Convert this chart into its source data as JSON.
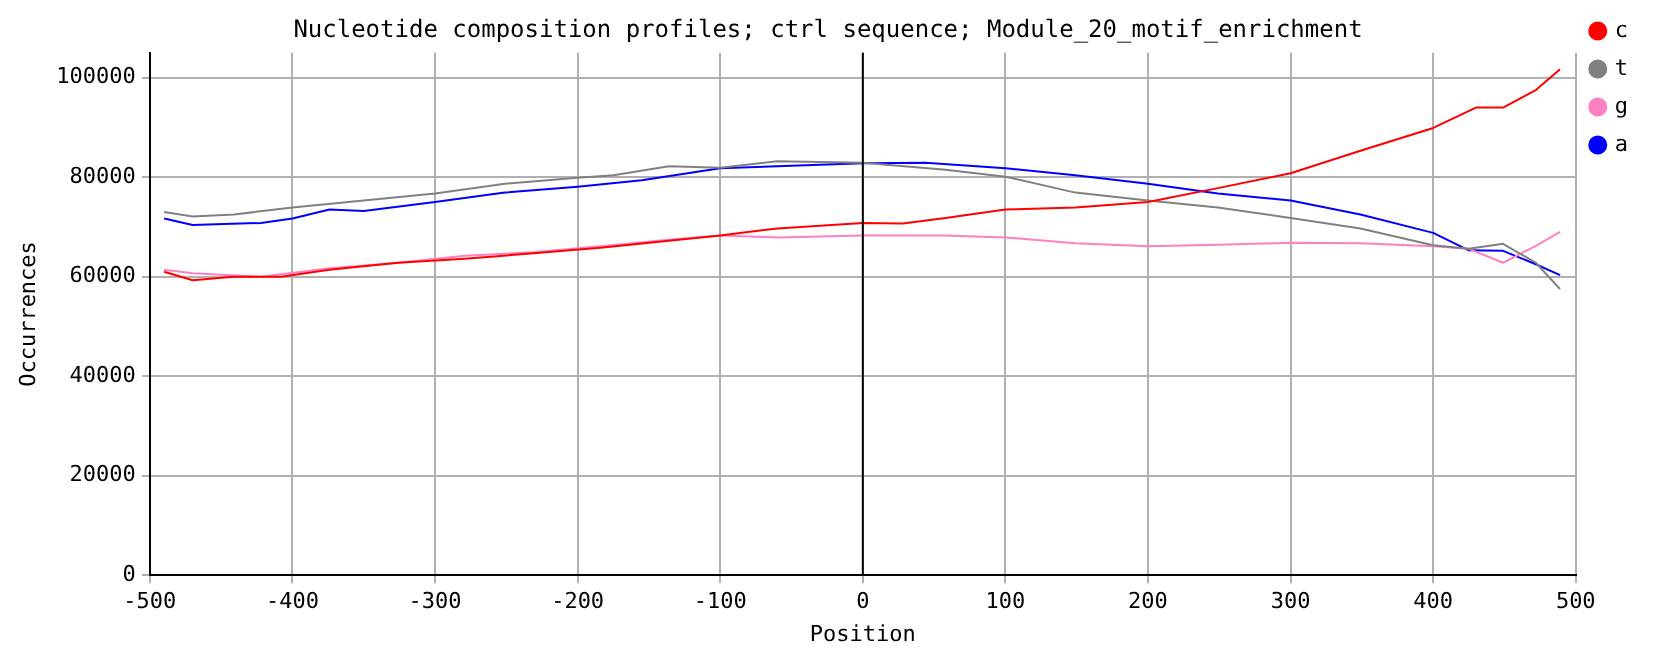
{
  "chart_data": {
    "type": "line",
    "title": "Nucleotide composition profiles; ctrl sequence; Module_20_motif_enrichment",
    "xlabel": "Position",
    "ylabel": "Occurrences",
    "xlim": [
      -500,
      500
    ],
    "xticks": [
      -500,
      -400,
      -300,
      -200,
      -100,
      0,
      100,
      200,
      300,
      400,
      500
    ],
    "ylim": [
      0,
      105000
    ],
    "yticks": [
      0,
      20000,
      40000,
      60000,
      80000,
      100000
    ],
    "grid": true,
    "legend": "top right",
    "marker": "none",
    "line_style": "solid",
    "ref_lines": [
      {
        "axis": "x",
        "value": 0,
        "color": "#000000"
      }
    ],
    "series": [
      {
        "name": "c",
        "color": "#ff0000",
        "x": [
          -490,
          -470,
          -441,
          -408,
          -374,
          -326,
          -279,
          -231,
          -184,
          -136,
          -100,
          -60,
          0,
          28,
          58,
          100,
          149,
          200,
          249,
          300,
          349,
          400,
          430,
          449,
          472,
          489
        ],
        "values": [
          61000,
          59300,
          60000,
          60000,
          61400,
          62800,
          63600,
          64700,
          65800,
          67200,
          68300,
          69700,
          70800,
          70700,
          71800,
          73500,
          73900,
          75000,
          77800,
          80800,
          85300,
          89900,
          94000,
          94000,
          97500,
          101700
        ]
      },
      {
        "name": "t",
        "color": "#808080",
        "x": [
          -490,
          -470,
          -441,
          -400,
          -350,
          -300,
          -251,
          -200,
          -175,
          -136,
          -100,
          -60,
          0,
          58,
          100,
          149,
          200,
          249,
          300,
          349,
          400,
          425,
          449,
          472,
          489
        ],
        "values": [
          73000,
          72100,
          72500,
          73900,
          75300,
          76700,
          78700,
          79900,
          80400,
          82200,
          81900,
          83200,
          82900,
          81500,
          80100,
          76900,
          75300,
          73900,
          71800,
          69700,
          66300,
          65600,
          66600,
          62800,
          57500
        ]
      },
      {
        "name": "g",
        "color": "#ff80c0",
        "x": [
          -490,
          -470,
          -422,
          -374,
          -326,
          -279,
          -231,
          -184,
          -136,
          -100,
          -60,
          0,
          58,
          100,
          149,
          200,
          249,
          300,
          349,
          400,
          425,
          449,
          472,
          489
        ],
        "values": [
          61400,
          60700,
          60000,
          61700,
          62800,
          64200,
          64900,
          66100,
          67400,
          68300,
          67900,
          68300,
          68300,
          67900,
          66700,
          66100,
          66400,
          66800,
          66700,
          66100,
          65600,
          62800,
          66200,
          69000
        ]
      },
      {
        "name": "a",
        "color": "#0000ff",
        "x": [
          -490,
          -470,
          -422,
          -400,
          -374,
          -350,
          -300,
          -251,
          -200,
          -155,
          -100,
          -60,
          0,
          44,
          100,
          149,
          200,
          249,
          300,
          349,
          400,
          425,
          449,
          472,
          489
        ],
        "values": [
          71700,
          70400,
          70800,
          71700,
          73500,
          73200,
          75000,
          76900,
          78100,
          79400,
          81800,
          82200,
          82800,
          82900,
          81800,
          80400,
          78700,
          76700,
          75300,
          72500,
          68800,
          65300,
          65200,
          62500,
          60300
        ]
      }
    ]
  }
}
